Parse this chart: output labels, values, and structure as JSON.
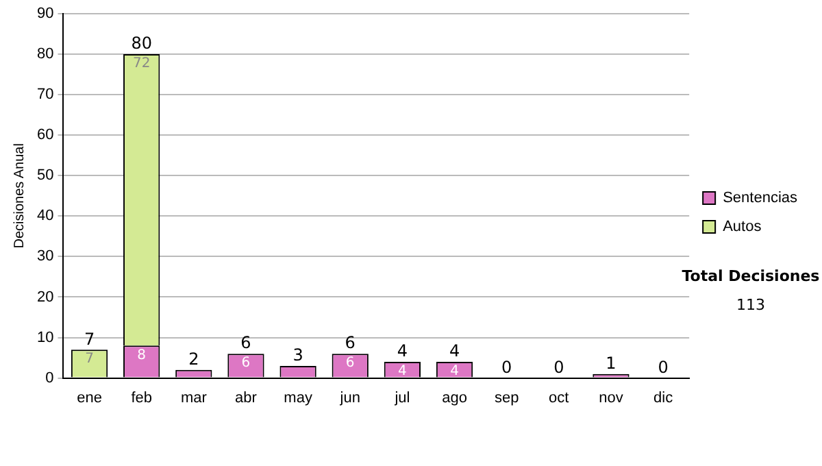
{
  "chart_data": {
    "type": "bar",
    "ylabel": "Decisiones Anual",
    "stacked": true,
    "categories": [
      "ene",
      "feb",
      "mar",
      "abr",
      "may",
      "jun",
      "jul",
      "ago",
      "sep",
      "oct",
      "nov",
      "dic"
    ],
    "series": [
      {
        "name": "Sentencias",
        "color": "#dd77c4",
        "values": [
          0,
          8,
          2,
          6,
          3,
          6,
          4,
          4,
          0,
          0,
          1,
          0
        ],
        "value_labels": [
          null,
          "8",
          null,
          "6",
          null,
          "6",
          "4",
          "4",
          null,
          null,
          null,
          null
        ]
      },
      {
        "name": "Autos",
        "color": "#d4ea94",
        "values": [
          7,
          72,
          0,
          0,
          0,
          0,
          0,
          0,
          0,
          0,
          0,
          0
        ],
        "value_labels": [
          "7",
          "72",
          null,
          null,
          null,
          null,
          null,
          null,
          null,
          null,
          null,
          null
        ]
      }
    ],
    "totals": [
      "7",
      "80",
      "2",
      "6",
      "3",
      "6",
      "4",
      "4",
      "0",
      "0",
      "1",
      "0"
    ],
    "ylim": [
      0,
      90
    ],
    "yticks": [
      0,
      10,
      20,
      30,
      40,
      50,
      60,
      70,
      80,
      90
    ],
    "grid": "y",
    "legend": "right",
    "annotations": [
      "Total Decisiones",
      "113"
    ]
  }
}
